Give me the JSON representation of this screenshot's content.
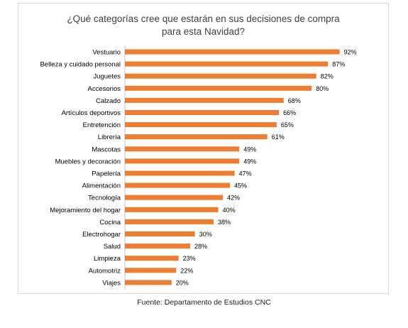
{
  "chart_data": {
    "type": "bar",
    "orientation": "horizontal",
    "title": "¿Qué categorías cree que estarán en sus decisiones de compra para esta Navidad?",
    "title_lines": [
      "¿Qué categorías cree que estarán en sus decisiones de compra",
      "para esta Navidad?"
    ],
    "categories": [
      "Vestuario",
      "Belleza y cuidado personal",
      "Juguetes",
      "Accesorios",
      "Calzado",
      "Artículos deportivos",
      "Entretención",
      "Librería",
      "Mascotas",
      "Muebles y decoración",
      "Papelería",
      "Alimentación",
      "Tecnología",
      "Mejoramiento del hogar",
      "Cocina",
      "Electrohogar",
      "Salud",
      "Limpieza",
      "Automotriz",
      "Viajes"
    ],
    "values": [
      92,
      87,
      82,
      80,
      68,
      66,
      65,
      61,
      49,
      49,
      47,
      45,
      42,
      40,
      38,
      30,
      28,
      23,
      22,
      20
    ],
    "value_labels": [
      "92%",
      "87%",
      "82%",
      "80%",
      "68%",
      "66%",
      "65%",
      "61%",
      "49%",
      "49%",
      "47%",
      "45%",
      "42%",
      "40%",
      "38%",
      "30%",
      "28%",
      "23%",
      "22%",
      "20%"
    ],
    "unit": "%",
    "xlim": [
      0,
      100
    ],
    "grid": false,
    "legend": "none",
    "bar_color": "#ED7D31"
  },
  "source_text": "Fuente: Departamento de Estudios CNC"
}
